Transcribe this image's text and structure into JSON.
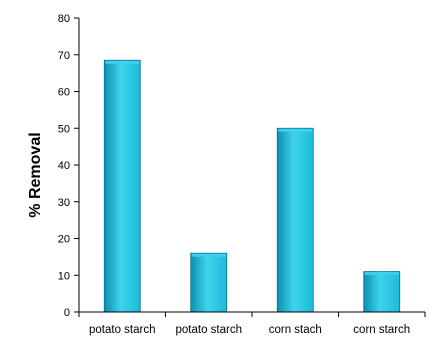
{
  "chart_data": {
    "type": "bar",
    "categories": [
      "potato starch",
      "potato starch",
      "corn stach",
      "corn starch"
    ],
    "values": [
      68.5,
      16,
      50,
      11
    ],
    "title": "",
    "xlabel": "",
    "ylabel": "% Removal",
    "ylim": [
      0,
      80
    ],
    "yticks": [
      "0",
      "10",
      "20",
      "30",
      "40",
      "50",
      "60",
      "70",
      "80"
    ],
    "grid": false,
    "legend": "none",
    "colors": {
      "bar_light": "#3fd3ec",
      "bar_mid": "#1bbcd8",
      "bar_dark": "#0b8fb0",
      "bar_edge": "#0a6f8c",
      "axis": "#000000"
    }
  }
}
